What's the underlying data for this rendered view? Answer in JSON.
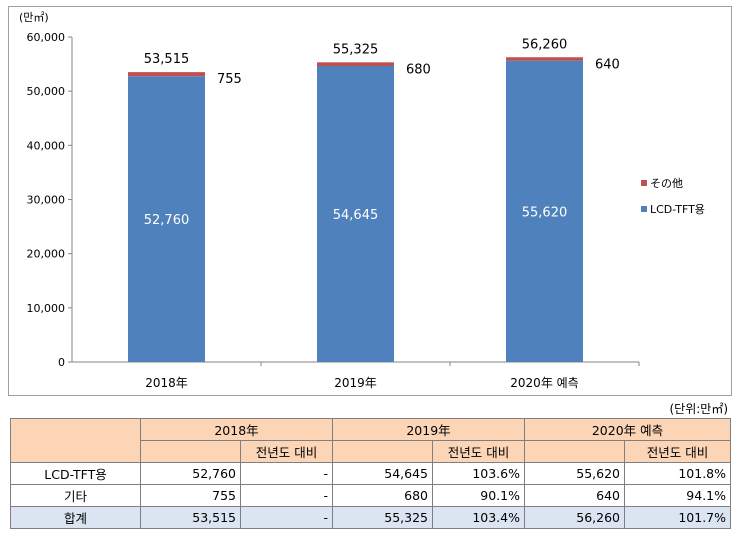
{
  "chart_data": {
    "type": "bar",
    "stacked": true,
    "y_unit": "(만㎡)",
    "categories": [
      "2018年",
      "2019年",
      "2020年 예측"
    ],
    "series": [
      {
        "name": "LCD-TFT용",
        "values": [
          52760,
          54645,
          55620
        ],
        "color": "#4f81bd"
      },
      {
        "name": "その他",
        "values": [
          755,
          680,
          640
        ],
        "color": "#c0504d"
      }
    ],
    "totals": [
      53515,
      55325,
      56260
    ],
    "ylim": [
      0,
      60000
    ],
    "yticks": [
      0,
      10000,
      20000,
      30000,
      40000,
      50000,
      60000
    ],
    "ytick_labels": [
      "0",
      "10,000",
      "20,000",
      "30,000",
      "40,000",
      "50,000",
      "60,000"
    ],
    "inner_labels": [
      "52,760",
      "54,645",
      "55,620"
    ],
    "other_labels": [
      "755",
      "680",
      "640"
    ],
    "total_labels": [
      "53,515",
      "55,325",
      "56,260"
    ],
    "legend_position": "right",
    "grid": false
  },
  "table": {
    "unit": "(단위:만㎡)",
    "years": [
      "2018年",
      "2019年",
      "2020年 예측"
    ],
    "sub_header": "전년도 대비",
    "rows": [
      {
        "label": "LCD-TFT용",
        "v2018": "52,760",
        "r2018": "-",
        "v2019": "54,645",
        "r2019": "103.6%",
        "v2020": "55,620",
        "r2020": "101.8%"
      },
      {
        "label": "기타",
        "v2018": "755",
        "r2018": "-",
        "v2019": "680",
        "r2019": "90.1%",
        "v2020": "640",
        "r2020": "94.1%"
      },
      {
        "label": "합계",
        "v2018": "53,515",
        "r2018": "-",
        "v2019": "55,325",
        "r2019": "103.4%",
        "v2020": "56,260",
        "r2020": "101.7%"
      }
    ]
  }
}
